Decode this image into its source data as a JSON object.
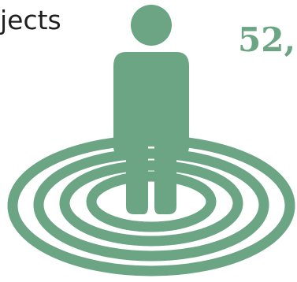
{
  "caption": "jects",
  "count": "52,",
  "figure": {
    "icon": "person-on-target-icon",
    "color": "#6ba584"
  }
}
